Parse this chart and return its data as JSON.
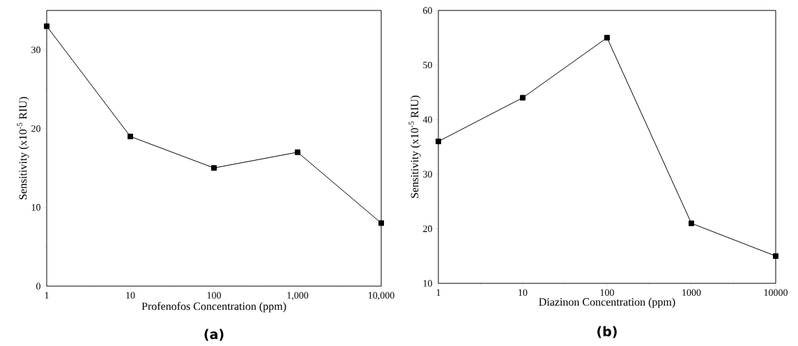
{
  "chart_data": [
    {
      "type": "line",
      "xlabel": "Profenofos Concentration (ppm)",
      "ylabel": "Sensitivity (x10$^{-5}$ RIU)",
      "x": [
        1,
        10,
        100,
        1000,
        10000
      ],
      "values": [
        33,
        19,
        15,
        17,
        8
      ],
      "color": "#000000",
      "xlim": [
        1,
        10000
      ],
      "ylim": [
        0,
        35
      ],
      "xticks": [
        1,
        10,
        100,
        {
          "value": 1000,
          "label": "1,000"
        },
        {
          "value": 10000,
          "label": "10,000"
        }
      ],
      "yticks": [
        0,
        10,
        20,
        30
      ],
      "log": "x",
      "marker": "square",
      "line_style": "solid",
      "annotations": [
        "(a)"
      ]
    },
    {
      "type": "line",
      "xlabel": "Diazinon Concentration (ppm)",
      "ylabel": "Sensitivity (x10$^{-5}$ RIU)",
      "x": [
        1,
        10,
        100,
        1000,
        10000
      ],
      "values": [
        36,
        44,
        55,
        21,
        15
      ],
      "color": "#000000",
      "xlim": [
        1,
        10000
      ],
      "ylim": [
        10,
        60
      ],
      "xticks": [
        1,
        10,
        100,
        1000,
        10000
      ],
      "yticks": [
        10,
        20,
        30,
        40,
        50,
        60
      ],
      "log": "x",
      "marker": "square",
      "line_style": "solid",
      "annotations": [
        "(b)"
      ]
    }
  ]
}
